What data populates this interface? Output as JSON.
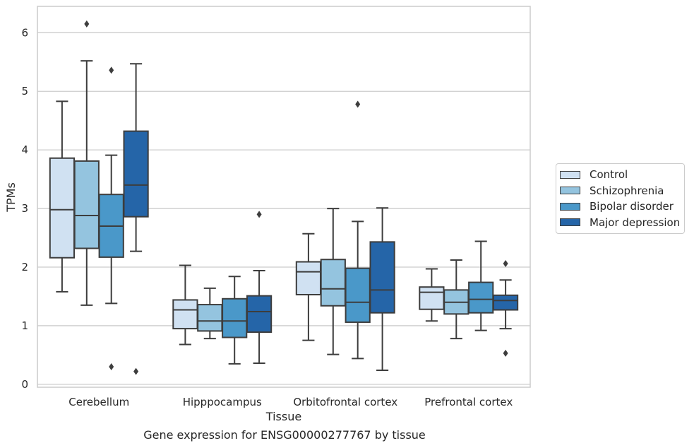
{
  "caption": "Gene expression for ENSG00000277767 by tissue",
  "chart_data": {
    "type": "boxplot",
    "title": "",
    "xlabel": "Tissue",
    "ylabel": "TPMs",
    "ylim": [
      -0.05,
      6.45
    ],
    "yticks": [
      0,
      1,
      2,
      3,
      4,
      5,
      6
    ],
    "grid": "horizontal",
    "legend_position": "right",
    "categories": [
      "Cerebellum",
      "Hipppocampus",
      "Orbitofrontal cortex",
      "Prefrontal cortex"
    ],
    "series": [
      {
        "name": "Control",
        "color": "#d0e1f2",
        "boxes": [
          {
            "whisker_low": 1.58,
            "q1": 2.16,
            "median": 2.98,
            "q3": 3.86,
            "whisker_high": 4.83,
            "outliers": []
          },
          {
            "whisker_low": 0.68,
            "q1": 0.95,
            "median": 1.27,
            "q3": 1.44,
            "whisker_high": 2.03,
            "outliers": []
          },
          {
            "whisker_low": 0.75,
            "q1": 1.53,
            "median": 1.92,
            "q3": 2.09,
            "whisker_high": 2.57,
            "outliers": []
          },
          {
            "whisker_low": 1.08,
            "q1": 1.28,
            "median": 1.57,
            "q3": 1.66,
            "whisker_high": 1.97,
            "outliers": []
          }
        ]
      },
      {
        "name": "Schizophrenia",
        "color": "#94c4df",
        "boxes": [
          {
            "whisker_low": 1.35,
            "q1": 2.32,
            "median": 2.88,
            "q3": 3.81,
            "whisker_high": 5.52,
            "outliers": [
              6.15
            ]
          },
          {
            "whisker_low": 0.78,
            "q1": 0.91,
            "median": 1.08,
            "q3": 1.36,
            "whisker_high": 1.64,
            "outliers": []
          },
          {
            "whisker_low": 0.51,
            "q1": 1.34,
            "median": 1.63,
            "q3": 2.13,
            "whisker_high": 3.0,
            "outliers": []
          },
          {
            "whisker_low": 0.78,
            "q1": 1.2,
            "median": 1.4,
            "q3": 1.61,
            "whisker_high": 2.12,
            "outliers": []
          }
        ]
      },
      {
        "name": "Bipolar disorder",
        "color": "#4a98c9",
        "boxes": [
          {
            "whisker_low": 1.38,
            "q1": 2.17,
            "median": 2.7,
            "q3": 3.24,
            "whisker_high": 3.91,
            "outliers": [
              5.36,
              0.3
            ]
          },
          {
            "whisker_low": 0.35,
            "q1": 0.8,
            "median": 1.08,
            "q3": 1.46,
            "whisker_high": 1.84,
            "outliers": []
          },
          {
            "whisker_low": 0.44,
            "q1": 1.06,
            "median": 1.4,
            "q3": 1.98,
            "whisker_high": 2.78,
            "outliers": [
              4.78
            ]
          },
          {
            "whisker_low": 0.92,
            "q1": 1.22,
            "median": 1.45,
            "q3": 1.74,
            "whisker_high": 2.44,
            "outliers": []
          }
        ]
      },
      {
        "name": "Major depression",
        "color": "#2565a8",
        "boxes": [
          {
            "whisker_low": 2.27,
            "q1": 2.86,
            "median": 3.4,
            "q3": 4.32,
            "whisker_high": 5.47,
            "outliers": [
              0.22
            ]
          },
          {
            "whisker_low": 0.36,
            "q1": 0.89,
            "median": 1.24,
            "q3": 1.51,
            "whisker_high": 1.94,
            "outliers": [
              2.9
            ]
          },
          {
            "whisker_low": 0.24,
            "q1": 1.22,
            "median": 1.61,
            "q3": 2.43,
            "whisker_high": 3.01,
            "outliers": []
          },
          {
            "whisker_low": 0.95,
            "q1": 1.27,
            "median": 1.43,
            "q3": 1.52,
            "whisker_high": 1.78,
            "outliers": [
              2.06,
              0.53
            ]
          }
        ]
      }
    ]
  }
}
